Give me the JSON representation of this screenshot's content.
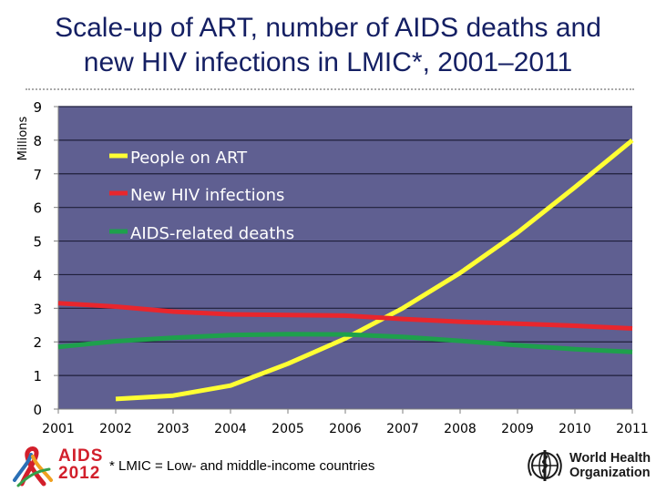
{
  "title": {
    "line1": "Scale-up of ART, number of AIDS deaths and",
    "line2": "new HIV infections in LMIC*, 2001–2011"
  },
  "footnote": "* LMIC = Low- and middle-income countries",
  "logos": {
    "aids_word": "AIDS",
    "aids_year": "2012",
    "who_line1": "World Health",
    "who_line2": "Organization"
  },
  "chart_data": {
    "type": "line",
    "title": "Scale-up of ART, number of AIDS deaths and new HIV infections in LMIC*, 2001–2011",
    "xlabel": "",
    "ylabel": "Millions",
    "x": [
      "2001",
      "2002",
      "2003",
      "2004",
      "2005",
      "2006",
      "2007",
      "2008",
      "2009",
      "2010",
      "2011"
    ],
    "ylim": [
      0,
      9
    ],
    "yticks": [
      "0",
      "1",
      "2",
      "3",
      "4",
      "5",
      "6",
      "7",
      "8",
      "9"
    ],
    "grid": true,
    "legend": "upper-left inside plot",
    "background_color": "#5f5f91",
    "series": [
      {
        "name": "People on ART",
        "color": "#ffff33",
        "values": [
          null,
          0.3,
          0.4,
          0.7,
          1.35,
          2.1,
          3.0,
          4.05,
          5.25,
          6.6,
          8.0
        ]
      },
      {
        "name": "New HIV infections",
        "color": "#e8262d",
        "values": [
          3.15,
          3.05,
          2.9,
          2.82,
          2.8,
          2.78,
          2.68,
          2.6,
          2.54,
          2.48,
          2.4
        ]
      },
      {
        "name": "AIDS-related deaths",
        "color": "#1ea04c",
        "values": [
          1.85,
          2.02,
          2.12,
          2.2,
          2.23,
          2.22,
          2.15,
          2.03,
          1.9,
          1.78,
          1.7
        ]
      }
    ]
  }
}
